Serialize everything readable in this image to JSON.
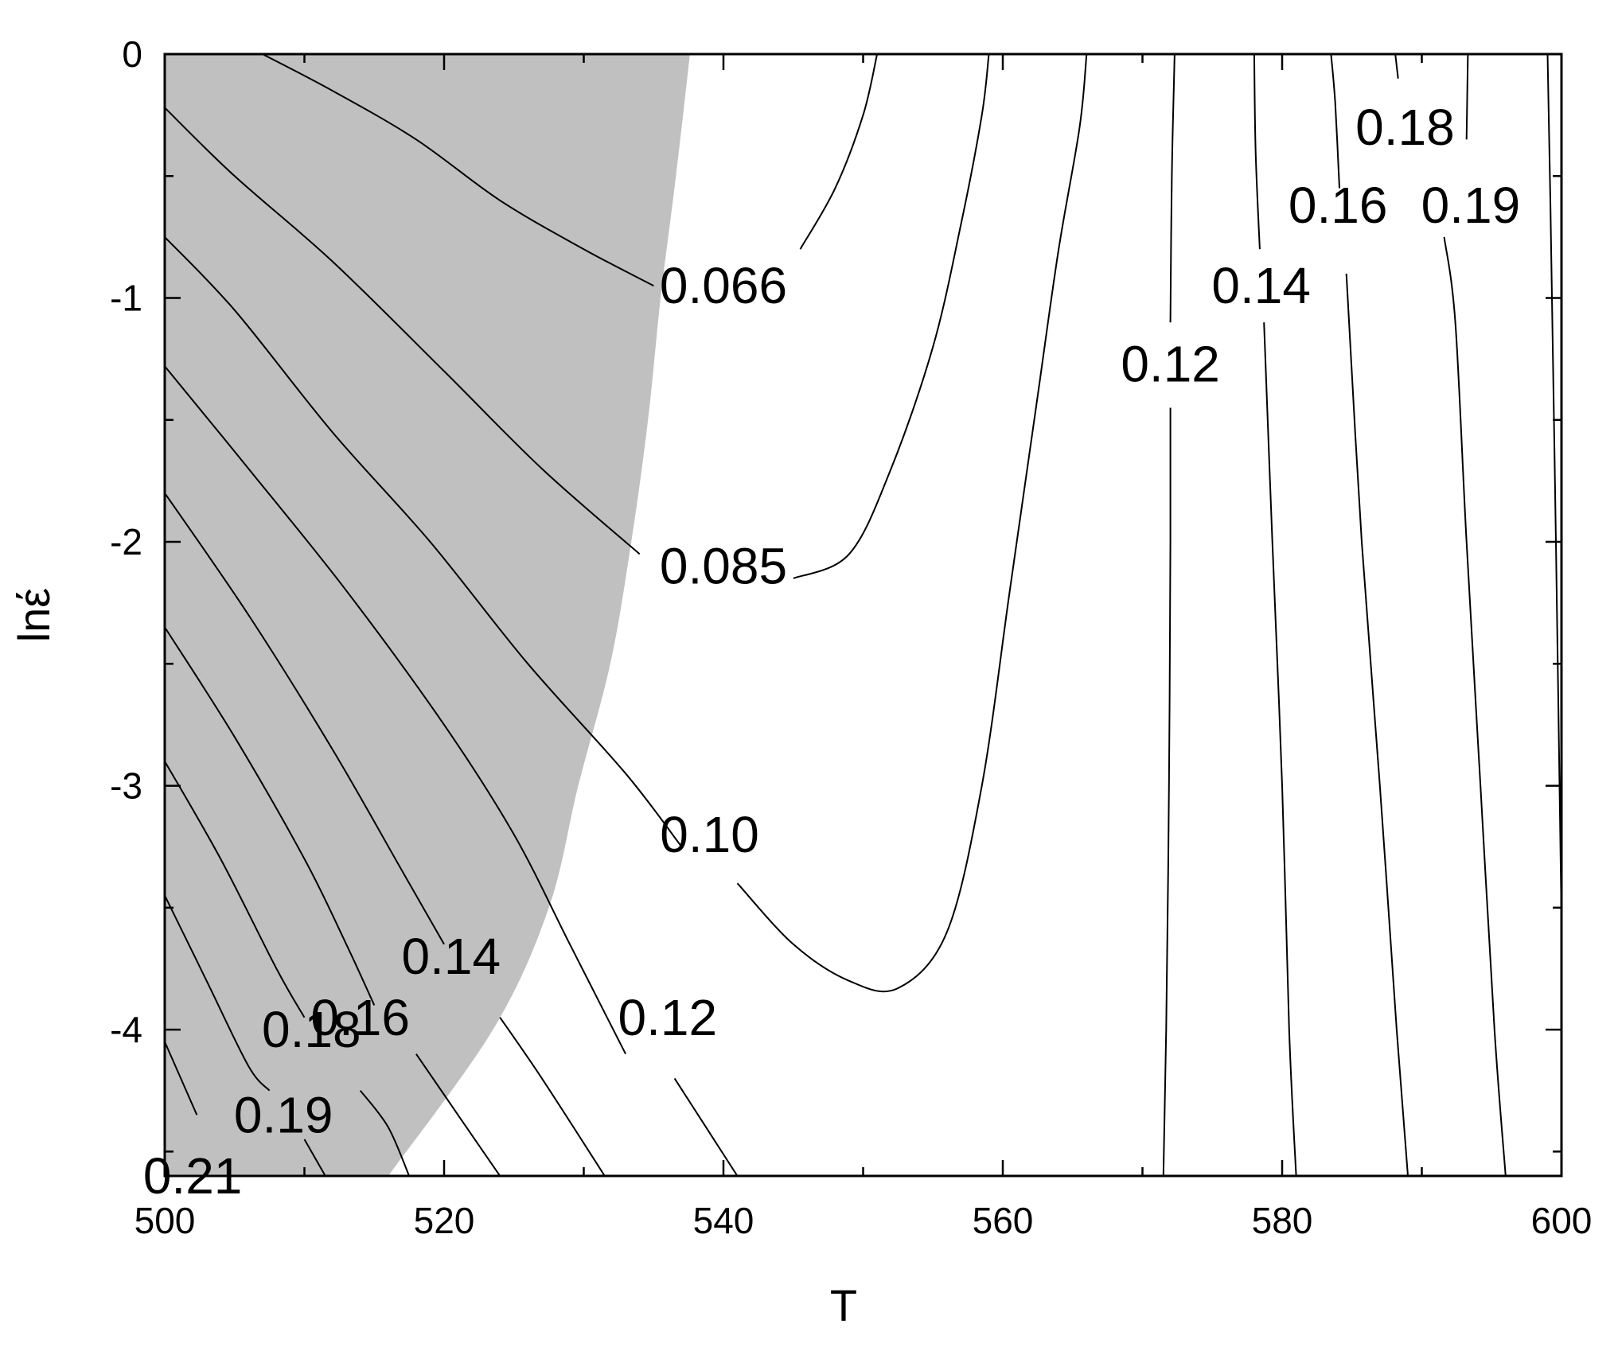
{
  "chart_data": {
    "type": "contour",
    "xlabel": "T",
    "ylabel": "lnέ",
    "xlim": [
      500,
      600
    ],
    "ylim": [
      -4.6,
      0
    ],
    "x_ticks": [
      500,
      520,
      540,
      560,
      580,
      600
    ],
    "y_ticks": [
      0,
      -1,
      -2,
      -3,
      -4
    ],
    "grid": false,
    "shaded_region": {
      "color": "#c0c0c0",
      "boundary": [
        [
          537.6,
          0
        ],
        [
          536.6,
          -0.5
        ],
        [
          535.5,
          -1.0
        ],
        [
          534.6,
          -1.5
        ],
        [
          533.4,
          -2.0
        ],
        [
          531.9,
          -2.5
        ],
        [
          529.6,
          -3.0
        ],
        [
          527.5,
          -3.5
        ],
        [
          523.5,
          -4.0
        ],
        [
          516.0,
          -4.6
        ]
      ]
    },
    "contours": [
      {
        "level": "0.066",
        "points": [
          [
            507,
            0
          ],
          [
            512,
            -0.15
          ],
          [
            518,
            -0.35
          ],
          [
            524,
            -0.6
          ],
          [
            530,
            -0.8
          ],
          [
            535,
            -0.95
          ]
        ]
      },
      {
        "level": "0.066",
        "points": [
          [
            545.5,
            -0.8
          ],
          [
            548,
            -0.55
          ],
          [
            550,
            -0.25
          ],
          [
            551,
            0
          ]
        ]
      },
      {
        "level": "0.085",
        "points": [
          [
            500,
            -0.22
          ],
          [
            505,
            -0.5
          ],
          [
            512,
            -0.85
          ],
          [
            520,
            -1.3
          ],
          [
            527,
            -1.7
          ],
          [
            534,
            -2.05
          ]
        ]
      },
      {
        "level": "0.085",
        "points": [
          [
            545,
            -2.15
          ],
          [
            549,
            -2.05
          ],
          [
            552,
            -1.7
          ],
          [
            555,
            -1.2
          ],
          [
            557,
            -0.7
          ],
          [
            558.5,
            -0.25
          ],
          [
            559,
            0
          ]
        ]
      },
      {
        "level": "0.10",
        "points": [
          [
            500,
            -0.75
          ],
          [
            505,
            -1.05
          ],
          [
            512,
            -1.55
          ],
          [
            519,
            -2.0
          ],
          [
            526,
            -2.5
          ],
          [
            533,
            -2.95
          ],
          [
            537,
            -3.25
          ]
        ]
      },
      {
        "level": "0.10",
        "points": [
          [
            541,
            -3.4
          ],
          [
            545,
            -3.65
          ],
          [
            549,
            -3.8
          ],
          [
            552.5,
            -3.83
          ],
          [
            556,
            -3.6
          ],
          [
            558.5,
            -3.0
          ],
          [
            560.5,
            -2.2
          ],
          [
            562.5,
            -1.4
          ],
          [
            564,
            -0.8
          ],
          [
            565.5,
            -0.3
          ],
          [
            566,
            0
          ]
        ]
      },
      {
        "level": "0.12",
        "points": [
          [
            500,
            -1.28
          ],
          [
            506,
            -1.7
          ],
          [
            513,
            -2.2
          ],
          [
            520,
            -2.75
          ],
          [
            525,
            -3.2
          ],
          [
            529,
            -3.65
          ],
          [
            533,
            -4.1
          ]
        ]
      },
      {
        "level": "0.12",
        "points": [
          [
            536.5,
            -4.2
          ],
          [
            541,
            -4.6
          ]
        ]
      },
      {
        "level": "0.12",
        "points": [
          [
            571.5,
            -4.6
          ],
          [
            571.7,
            -4.0
          ],
          [
            571.9,
            -3.0
          ],
          [
            572,
            -2.0
          ],
          [
            572,
            -1.45
          ]
        ]
      },
      {
        "level": "0.12",
        "points": [
          [
            572,
            -1.1
          ],
          [
            572.1,
            -0.5
          ],
          [
            572.3,
            0
          ]
        ]
      },
      {
        "level": "0.14",
        "points": [
          [
            500,
            -1.8
          ],
          [
            506,
            -2.3
          ],
          [
            512,
            -2.85
          ],
          [
            517,
            -3.35
          ],
          [
            520,
            -3.65
          ]
        ]
      },
      {
        "level": "0.14",
        "points": [
          [
            524,
            -3.95
          ],
          [
            527,
            -4.2
          ],
          [
            531.5,
            -4.6
          ]
        ]
      },
      {
        "level": "0.14",
        "points": [
          [
            581,
            -4.6
          ],
          [
            580.5,
            -4.0
          ],
          [
            580,
            -3.0
          ],
          [
            579.3,
            -2.0
          ],
          [
            578.7,
            -1.1
          ]
        ]
      },
      {
        "level": "0.14",
        "points": [
          [
            578.4,
            -0.8
          ],
          [
            578.1,
            -0.4
          ],
          [
            578,
            0
          ]
        ]
      },
      {
        "level": "0.16",
        "points": [
          [
            500,
            -2.35
          ],
          [
            505,
            -2.8
          ],
          [
            510,
            -3.3
          ],
          [
            513,
            -3.65
          ],
          [
            515,
            -3.9
          ]
        ]
      },
      {
        "level": "0.16",
        "points": [
          [
            518,
            -4.1
          ],
          [
            521,
            -4.35
          ],
          [
            524,
            -4.6
          ]
        ]
      },
      {
        "level": "0.16",
        "points": [
          [
            589,
            -4.6
          ],
          [
            588.2,
            -4.0
          ],
          [
            587,
            -3.0
          ],
          [
            585.7,
            -2.0
          ],
          [
            584.6,
            -0.9
          ]
        ]
      },
      {
        "level": "0.16",
        "points": [
          [
            584.1,
            -0.55
          ],
          [
            583.8,
            -0.2
          ],
          [
            583.5,
            0
          ]
        ]
      },
      {
        "level": "0.18",
        "points": [
          [
            500,
            -2.9
          ],
          [
            504,
            -3.3
          ],
          [
            508,
            -3.75
          ],
          [
            510,
            -3.95
          ]
        ]
      },
      {
        "level": "0.18",
        "points": [
          [
            514,
            -4.25
          ],
          [
            516,
            -4.4
          ],
          [
            517.5,
            -4.6
          ]
        ]
      },
      {
        "level": "0.18",
        "points": [
          [
            588.3,
            -0.1
          ],
          [
            588.1,
            0
          ]
        ]
      },
      {
        "level": "0.19",
        "points": [
          [
            500,
            -3.45
          ],
          [
            503,
            -3.8
          ],
          [
            506,
            -4.15
          ],
          [
            507.5,
            -4.25
          ]
        ]
      },
      {
        "level": "0.19",
        "points": [
          [
            510,
            -4.45
          ],
          [
            511.5,
            -4.6
          ]
        ]
      },
      {
        "level": "0.19",
        "points": [
          [
            596,
            -4.6
          ],
          [
            595.2,
            -4.0
          ],
          [
            594.2,
            -3.0
          ],
          [
            593.2,
            -2.0
          ],
          [
            592.4,
            -1.1
          ],
          [
            591.6,
            -0.75
          ]
        ]
      },
      {
        "level": "0.19",
        "points": [
          [
            593.2,
            -0.35
          ],
          [
            593.3,
            0
          ]
        ]
      },
      {
        "level": "0.21",
        "points": [
          [
            500,
            -4.05
          ],
          [
            502.3,
            -4.35
          ]
        ]
      },
      {
        "level": "0.21",
        "points": [
          [
            505.5,
            -4.6
          ],
          [
            505.7,
            -4.6
          ]
        ]
      },
      {
        "level": "",
        "points": [
          [
            600,
            -3.55
          ],
          [
            599.6,
            -2.0
          ],
          [
            599.2,
            -0.6
          ],
          [
            599,
            0
          ]
        ]
      }
    ],
    "contour_labels": [
      {
        "text": "0.066",
        "x": 540,
        "y": -0.95
      },
      {
        "text": "0.085",
        "x": 540,
        "y": -2.1
      },
      {
        "text": "0.10",
        "x": 539,
        "y": -3.2
      },
      {
        "text": "0.12",
        "x": 536,
        "y": -3.95
      },
      {
        "text": "0.14",
        "x": 520.5,
        "y": -3.7
      },
      {
        "text": "0.16",
        "x": 514,
        "y": -3.95
      },
      {
        "text": "0.18",
        "x": 510.5,
        "y": -4.0
      },
      {
        "text": "0.19",
        "x": 508.5,
        "y": -4.35
      },
      {
        "text": "0.21",
        "x": 502,
        "y": -4.6
      },
      {
        "text": "0.12",
        "x": 572,
        "y": -1.27
      },
      {
        "text": "0.14",
        "x": 578.5,
        "y": -0.95
      },
      {
        "text": "0.16",
        "x": 584,
        "y": -0.62
      },
      {
        "text": "0.18",
        "x": 588.8,
        "y": -0.3
      },
      {
        "text": "0.19",
        "x": 593.5,
        "y": -0.62
      }
    ]
  }
}
